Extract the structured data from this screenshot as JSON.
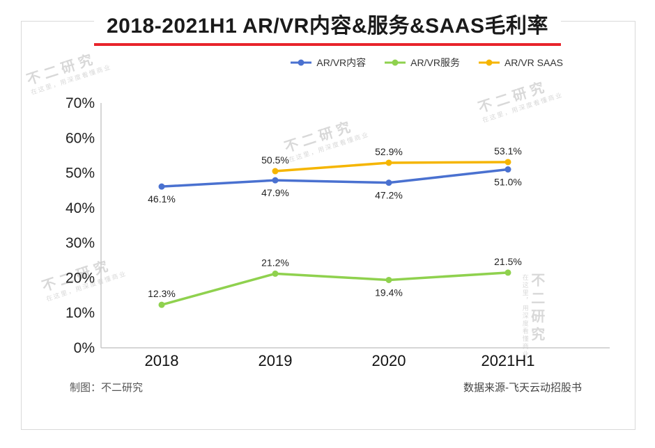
{
  "page": {
    "title": "2018-2021H1 AR/VR内容&服务&SAAS毛利率",
    "footer_left": "制图：不二研究",
    "footer_right": "数据来源-飞天云动招股书",
    "watermark": {
      "main": "不二研究",
      "sub": "在这里，用深度看懂商业"
    }
  },
  "chart_data": {
    "type": "line",
    "title": "2018-2021H1 AR/VR内容&服务&SAAS毛利率",
    "categories": [
      "2018",
      "2019",
      "2020",
      "2021H1"
    ],
    "series": [
      {
        "name": "AR/VR内容",
        "color": "#4a71d0",
        "values": [
          46.1,
          47.9,
          47.2,
          51.0
        ],
        "labels": [
          "46.1%",
          "47.9%",
          "47.2%",
          "51.0%"
        ],
        "label_positions": [
          "below",
          "below",
          "below",
          "below"
        ]
      },
      {
        "name": "AR/VR服务",
        "color": "#8fd14e",
        "values": [
          12.3,
          21.2,
          19.4,
          21.5
        ],
        "labels": [
          "12.3%",
          "21.2%",
          "19.4%",
          "21.5%"
        ],
        "label_positions": [
          "above",
          "above",
          "below",
          "above"
        ]
      },
      {
        "name": "AR/VR SAAS",
        "color": "#f5b500",
        "values": [
          null,
          50.5,
          52.9,
          53.1
        ],
        "labels": [
          null,
          "50.5%",
          "52.9%",
          "53.1%"
        ],
        "label_positions": [
          null,
          "above",
          "above",
          "above"
        ]
      }
    ],
    "ylim": [
      0,
      70
    ],
    "yticks": [
      0,
      10,
      20,
      30,
      40,
      50,
      60,
      70
    ],
    "ytick_labels": [
      "0%",
      "10%",
      "20%",
      "30%",
      "40%",
      "50%",
      "60%",
      "70%"
    ],
    "grid": false,
    "legend_position": "top-right"
  }
}
